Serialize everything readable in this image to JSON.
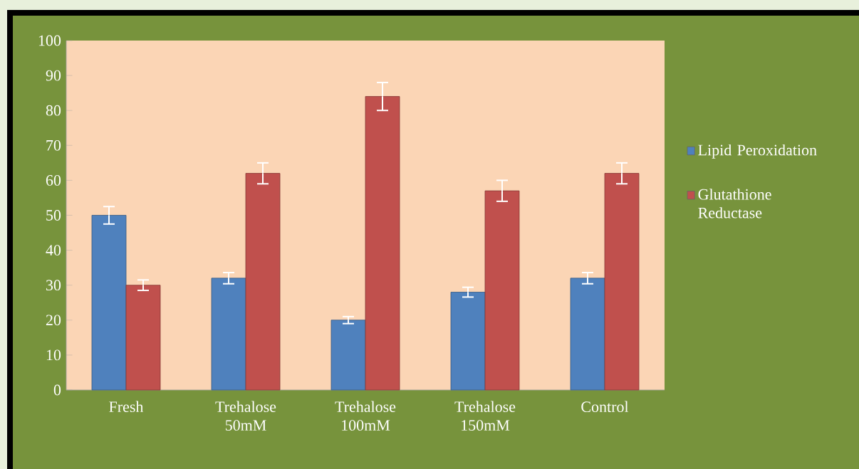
{
  "chart_data": {
    "type": "bar",
    "categories": [
      "Fresh",
      "Trehalose 50mM",
      "Trehalose 100mM",
      "Trehalose 150mM",
      "Control"
    ],
    "series": [
      {
        "name": "Lipid Peroxidation",
        "color": "#4f81bd",
        "values": [
          50,
          32,
          20,
          28,
          32
        ],
        "errors": [
          2.5,
          1.6,
          1,
          1.4,
          1.6
        ]
      },
      {
        "name": "Glutathione Reductase",
        "color": "#c0504d",
        "values": [
          30,
          62,
          84,
          57,
          62
        ],
        "errors": [
          1.5,
          3,
          4,
          3,
          3
        ]
      }
    ],
    "ylim": [
      0,
      100
    ],
    "yticks": [
      0,
      10,
      20,
      30,
      40,
      50,
      60,
      70,
      80,
      90,
      100
    ],
    "grid": false,
    "legend": "right"
  }
}
